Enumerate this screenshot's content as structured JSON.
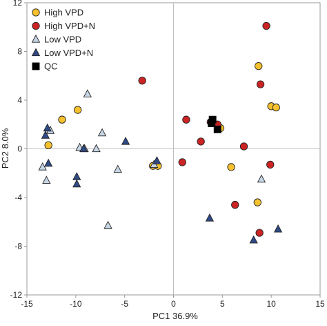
{
  "chart_data": {
    "type": "scatter",
    "title": "",
    "xlabel": "PC1 36.9%",
    "ylabel": "PC2 8.0%",
    "xlim": [
      -15,
      15
    ],
    "ylim": [
      -12,
      12
    ],
    "x_ticks": [
      -15,
      -10,
      -5,
      0,
      5,
      10,
      15
    ],
    "x_tick_labels": [
      "-15",
      "-10",
      "-5",
      "0",
      "5",
      "10",
      "15"
    ],
    "y_ticks": [
      12,
      8,
      4,
      0,
      -4,
      -8,
      -12
    ],
    "y_tick_labels": [
      "12",
      "8",
      "4",
      "0",
      "-4",
      "-8",
      "-12"
    ],
    "grid": false,
    "zero_lines": true,
    "legend_position": "top-left",
    "series": [
      {
        "name": "High VPD",
        "marker": "circle",
        "color": "#f5c12e",
        "x": [
          -11.4,
          -9.8,
          -12.8,
          -2.1,
          -1.6,
          4.8,
          5.9,
          8.7,
          10.0,
          10.5,
          8.6
        ],
        "y": [
          2.4,
          3.2,
          0.3,
          -1.4,
          -1.4,
          1.7,
          -1.5,
          6.8,
          3.5,
          3.4,
          -4.4
        ]
      },
      {
        "name": "High VPD+N",
        "marker": "circle",
        "color": "#cc2424",
        "x": [
          -3.2,
          1.3,
          2.8,
          3.8,
          4.5,
          9.5,
          8.9,
          7.2,
          9.9,
          0.9,
          6.3,
          8.8
        ],
        "y": [
          5.6,
          2.4,
          0.6,
          2.2,
          2.0,
          10.1,
          5.3,
          0.2,
          -1.3,
          -1.1,
          -4.6,
          -6.9
        ]
      },
      {
        "name": "Low VPD",
        "marker": "triangle-up",
        "color": "#c6d6e6",
        "x": [
          -12.6,
          -9.6,
          -8.8,
          -9.1,
          -7.9,
          -7.3,
          -13.4,
          -13.0,
          -5.7,
          -2.0,
          -6.7,
          9.0
        ],
        "y": [
          1.5,
          0.1,
          4.5,
          0.0,
          0.0,
          1.3,
          -1.5,
          -2.6,
          -1.7,
          -1.3,
          -6.3,
          -2.5
        ]
      },
      {
        "name": "Low VPD+N",
        "marker": "triangle-up",
        "color": "#2f4a85",
        "x": [
          -12.9,
          -13.1,
          -12.8,
          -9.9,
          -9.9,
          -9.2,
          -4.9,
          -1.7,
          3.7,
          8.2,
          10.7
        ],
        "y": [
          1.7,
          1.1,
          -1.2,
          -2.3,
          -2.9,
          0.0,
          0.6,
          -1.0,
          -5.7,
          -7.5,
          -6.6
        ]
      },
      {
        "name": "QC",
        "marker": "square",
        "color": "#000000",
        "x": [
          4.0,
          3.9,
          4.5
        ],
        "y": [
          2.4,
          2.1,
          1.6
        ]
      }
    ]
  }
}
